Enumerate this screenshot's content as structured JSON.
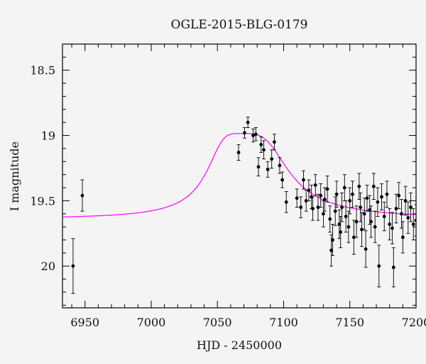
{
  "chart_data": {
    "type": "scatter",
    "title": "OGLE-2015-BLG-0179",
    "xlabel": "HJD - 2450000",
    "ylabel": "I magnitude",
    "xlim": [
      6933,
      7200
    ],
    "ylim": [
      20.32,
      18.3
    ],
    "y_inverted": true,
    "x_ticks": [
      6950,
      7000,
      7050,
      7100,
      7150,
      7200
    ],
    "y_ticks": [
      18.5,
      19,
      19.5,
      20
    ],
    "x_tick_labels": [
      "6950",
      "7000",
      "7050",
      "7100",
      "7150",
      "7200"
    ],
    "y_tick_labels": [
      "18.5",
      "19",
      "19.5",
      "20"
    ],
    "grid": false,
    "colors": {
      "points": "#000000",
      "model": "#ff00ff",
      "frame": "#000000",
      "background": "#f4f4f4"
    },
    "series": [
      {
        "kind": "points_with_errorbars",
        "points": [
          [
            6941.0,
            20.0,
            0.21
          ],
          [
            6948.0,
            19.46,
            0.12
          ],
          [
            7066.0,
            19.13,
            0.06
          ],
          [
            7070.5,
            18.98,
            0.04
          ],
          [
            7073.0,
            18.9,
            0.04
          ],
          [
            7077.0,
            19.0,
            0.05
          ],
          [
            7079.0,
            18.99,
            0.05
          ],
          [
            7081.0,
            19.24,
            0.07
          ],
          [
            7083.0,
            19.07,
            0.06
          ],
          [
            7085.0,
            19.11,
            0.07
          ],
          [
            7088.0,
            19.26,
            0.06
          ],
          [
            7091.0,
            19.18,
            0.07
          ],
          [
            7093.0,
            19.05,
            0.06
          ],
          [
            7097.0,
            19.23,
            0.06
          ],
          [
            7099.0,
            19.34,
            0.06
          ],
          [
            7102.0,
            19.51,
            0.08
          ],
          [
            7110.0,
            19.48,
            0.07
          ],
          [
            7113.0,
            19.55,
            0.08
          ],
          [
            7115.0,
            19.34,
            0.07
          ],
          [
            7117.0,
            19.5,
            0.08
          ],
          [
            7119.0,
            19.42,
            0.08
          ],
          [
            7121.0,
            19.47,
            0.09
          ],
          [
            7122.0,
            19.56,
            0.09
          ],
          [
            7124.0,
            19.38,
            0.08
          ],
          [
            7126.0,
            19.55,
            0.1
          ],
          [
            7128.0,
            19.46,
            0.09
          ],
          [
            7130.0,
            19.6,
            0.1
          ],
          [
            7131.0,
            19.49,
            0.09
          ],
          [
            7133.0,
            19.41,
            0.1
          ],
          [
            7135.0,
            19.64,
            0.1
          ],
          [
            7136.0,
            19.88,
            0.12
          ],
          [
            7137.0,
            19.8,
            0.12
          ],
          [
            7139.0,
            19.58,
            0.11
          ],
          [
            7140.0,
            19.45,
            0.1
          ],
          [
            7142.0,
            19.68,
            0.11
          ],
          [
            7143.0,
            19.74,
            0.12
          ],
          [
            7144.0,
            19.55,
            0.11
          ],
          [
            7146.0,
            19.4,
            0.1
          ],
          [
            7147.0,
            19.62,
            0.12
          ],
          [
            7149.0,
            19.7,
            0.12
          ],
          [
            7150.0,
            19.5,
            0.1
          ],
          [
            7152.0,
            19.45,
            0.1
          ],
          [
            7153.0,
            19.78,
            0.13
          ],
          [
            7155.0,
            19.66,
            0.12
          ],
          [
            7157.0,
            19.39,
            0.1
          ],
          [
            7158.0,
            19.55,
            0.11
          ],
          [
            7159.0,
            19.72,
            0.13
          ],
          [
            7161.0,
            19.6,
            0.12
          ],
          [
            7162.0,
            19.87,
            0.14
          ],
          [
            7163.0,
            19.48,
            0.1
          ],
          [
            7165.0,
            19.57,
            0.11
          ],
          [
            7166.0,
            19.66,
            0.12
          ],
          [
            7168.0,
            19.39,
            0.1
          ],
          [
            7169.0,
            19.7,
            0.12
          ],
          [
            7171.0,
            19.51,
            0.11
          ],
          [
            7172.0,
            20.0,
            0.16
          ],
          [
            7174.0,
            19.47,
            0.1
          ],
          [
            7176.0,
            19.62,
            0.11
          ],
          [
            7178.0,
            19.45,
            0.1
          ],
          [
            7180.0,
            19.68,
            0.12
          ],
          [
            7182.0,
            19.71,
            0.12
          ],
          [
            7183.0,
            20.01,
            0.15
          ],
          [
            7185.0,
            19.56,
            0.11
          ],
          [
            7187.0,
            19.46,
            0.1
          ],
          [
            7189.0,
            19.6,
            0.11
          ],
          [
            7190.0,
            19.78,
            0.12
          ],
          [
            7192.0,
            19.5,
            0.11
          ],
          [
            7194.0,
            19.63,
            0.12
          ],
          [
            7196.0,
            19.55,
            0.11
          ],
          [
            7198.0,
            19.68,
            0.12
          ],
          [
            7200.0,
            19.65,
            0.12
          ]
        ]
      },
      {
        "kind": "model_curve",
        "model": {
          "t0": 7067.5,
          "baseline": 19.64,
          "peak": 18.985,
          "width_before": 21,
          "width_after": 30
        }
      }
    ]
  }
}
